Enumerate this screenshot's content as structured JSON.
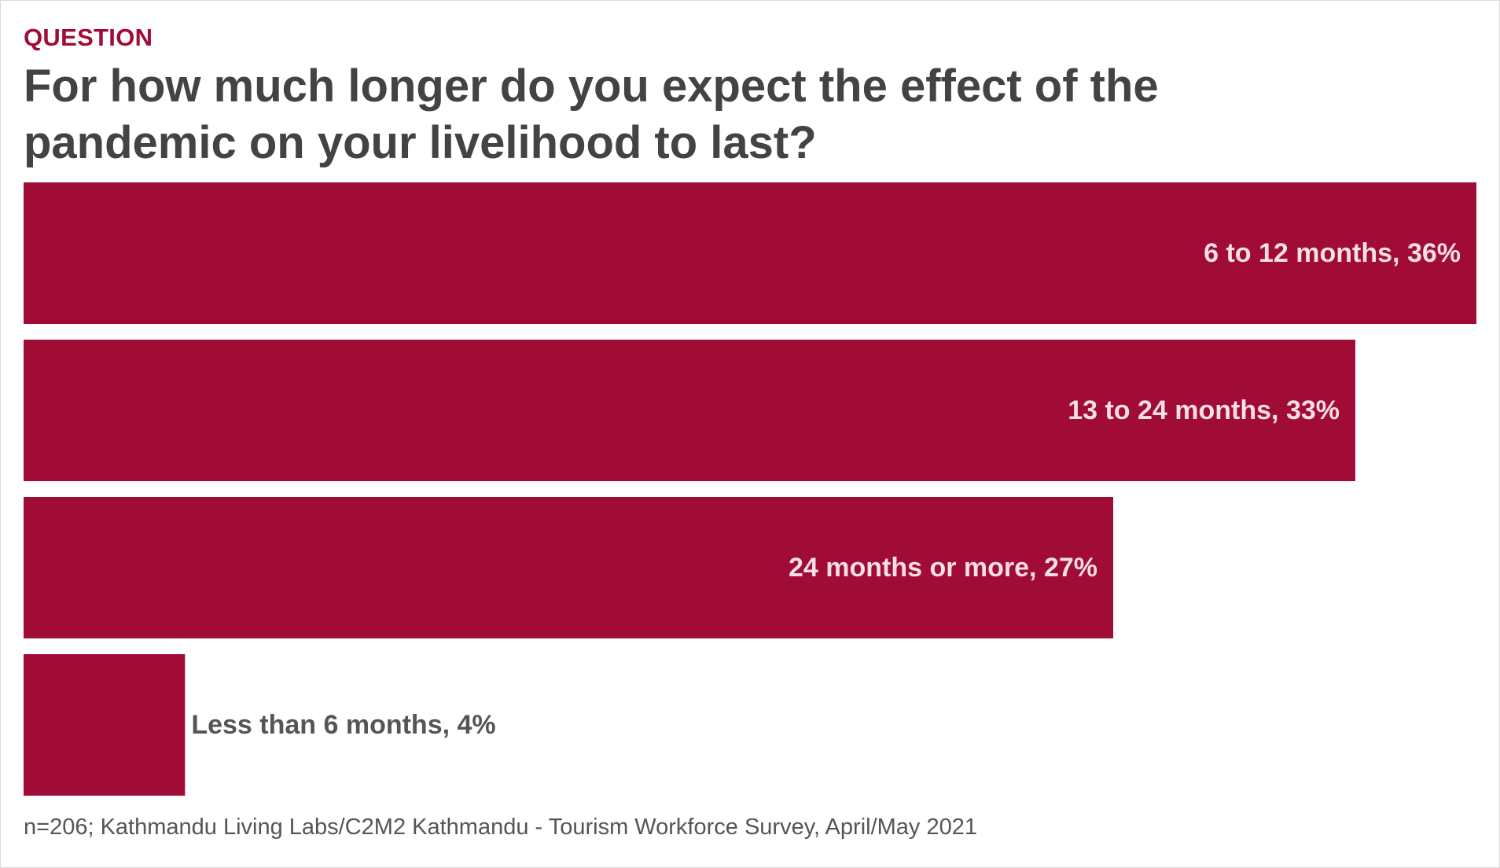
{
  "header": {
    "eyebrow": "QUESTION",
    "title": "For how much longer do you expect the effect of the pandemic on your livelihood to last?"
  },
  "chart_data": {
    "type": "bar",
    "orientation": "horizontal",
    "categories": [
      "6 to 12 months",
      "13 to 24 months",
      "24 months or more",
      "Less than 6 months"
    ],
    "values": [
      36,
      33,
      27,
      4
    ],
    "labels": [
      "6 to 12 months, 36%",
      "13 to 24 months, 33%",
      "24 months or more, 27%",
      "Less than 6 months, 4%"
    ],
    "unit": "%",
    "xlim": [
      0,
      36
    ],
    "title": "For how much longer do you expect the effect of the pandemic on your livelihood to last?",
    "xlabel": "",
    "ylabel": "",
    "grid": false,
    "legend": "none",
    "colors": {
      "bar": "#a00c36",
      "label_inside": "#f6dfe5",
      "label_outside": "#555555"
    }
  },
  "footer": {
    "source": "n=206; Kathmandu Living Labs/C2M2 Kathmandu - Tourism Workforce Survey, April/May 2021"
  }
}
